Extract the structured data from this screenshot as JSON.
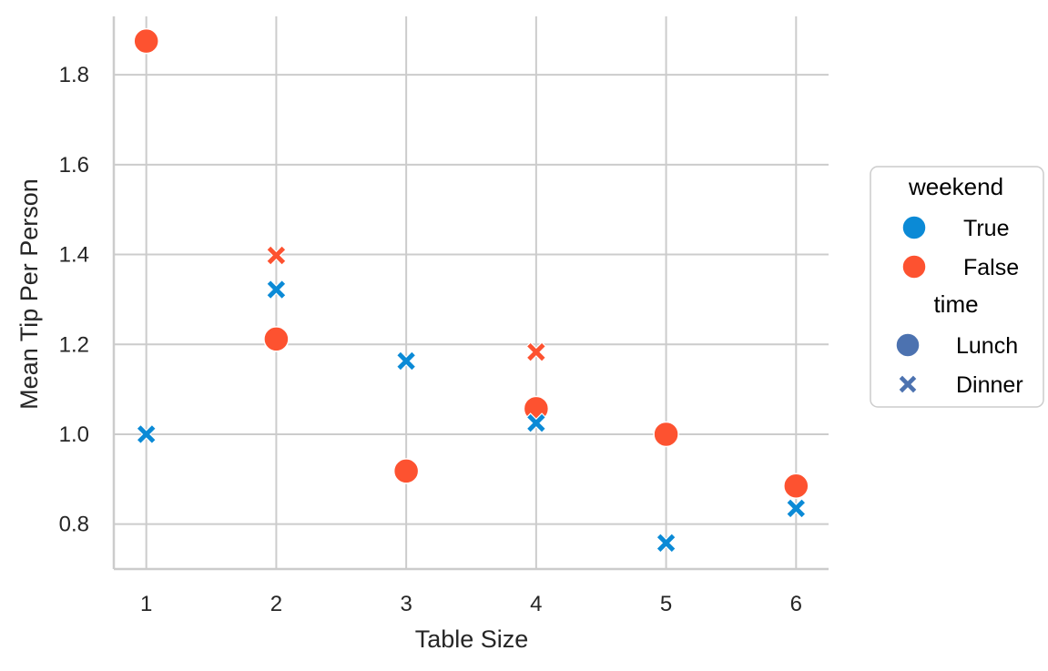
{
  "chart_data": {
    "type": "scatter",
    "xlabel": "Table Size",
    "ylabel": "Mean Tip Per Person",
    "x_ticks": [
      1,
      2,
      3,
      4,
      5,
      6
    ],
    "x_tick_labels": [
      "1",
      "2",
      "3",
      "4",
      "5",
      "6"
    ],
    "y_ticks": [
      0.8,
      1.0,
      1.2,
      1.4,
      1.6,
      1.8
    ],
    "y_tick_labels": [
      "0.8",
      "1.0",
      "1.2",
      "1.4",
      "1.6",
      "1.8"
    ],
    "xlim": [
      0.75,
      6.25
    ],
    "ylim": [
      0.7,
      1.93
    ],
    "grid": true,
    "legend_position": "right",
    "hue_legend": {
      "title": "weekend",
      "entries": [
        {
          "label": "True",
          "color": "#0b8ad6"
        },
        {
          "label": "False",
          "color": "#fd5230"
        }
      ]
    },
    "style_legend": {
      "title": "time",
      "entries": [
        {
          "label": "Lunch",
          "marker": "circle",
          "color": "#4c72b0"
        },
        {
          "label": "Dinner",
          "marker": "x",
          "color": "#4c72b0"
        }
      ]
    },
    "points": [
      {
        "x": 1,
        "y": 1.875,
        "weekend": "False",
        "time": "Lunch"
      },
      {
        "x": 1,
        "y": 1.0,
        "weekend": "True",
        "time": "Dinner"
      },
      {
        "x": 2,
        "y": 1.398,
        "weekend": "False",
        "time": "Dinner"
      },
      {
        "x": 2,
        "y": 1.322,
        "weekend": "True",
        "time": "Dinner"
      },
      {
        "x": 2,
        "y": 1.212,
        "weekend": "False",
        "time": "Lunch"
      },
      {
        "x": 3,
        "y": 1.163,
        "weekend": "True",
        "time": "Dinner"
      },
      {
        "x": 3,
        "y": 0.918,
        "weekend": "False",
        "time": "Lunch"
      },
      {
        "x": 4,
        "y": 1.183,
        "weekend": "False",
        "time": "Dinner"
      },
      {
        "x": 4,
        "y": 1.057,
        "weekend": "False",
        "time": "Lunch"
      },
      {
        "x": 4,
        "y": 1.025,
        "weekend": "True",
        "time": "Dinner"
      },
      {
        "x": 5,
        "y": 1.0,
        "weekend": "False",
        "time": "Lunch"
      },
      {
        "x": 5,
        "y": 0.758,
        "weekend": "True",
        "time": "Dinner"
      },
      {
        "x": 6,
        "y": 0.885,
        "weekend": "False",
        "time": "Lunch"
      },
      {
        "x": 6,
        "y": 0.835,
        "weekend": "True",
        "time": "Dinner"
      }
    ]
  }
}
